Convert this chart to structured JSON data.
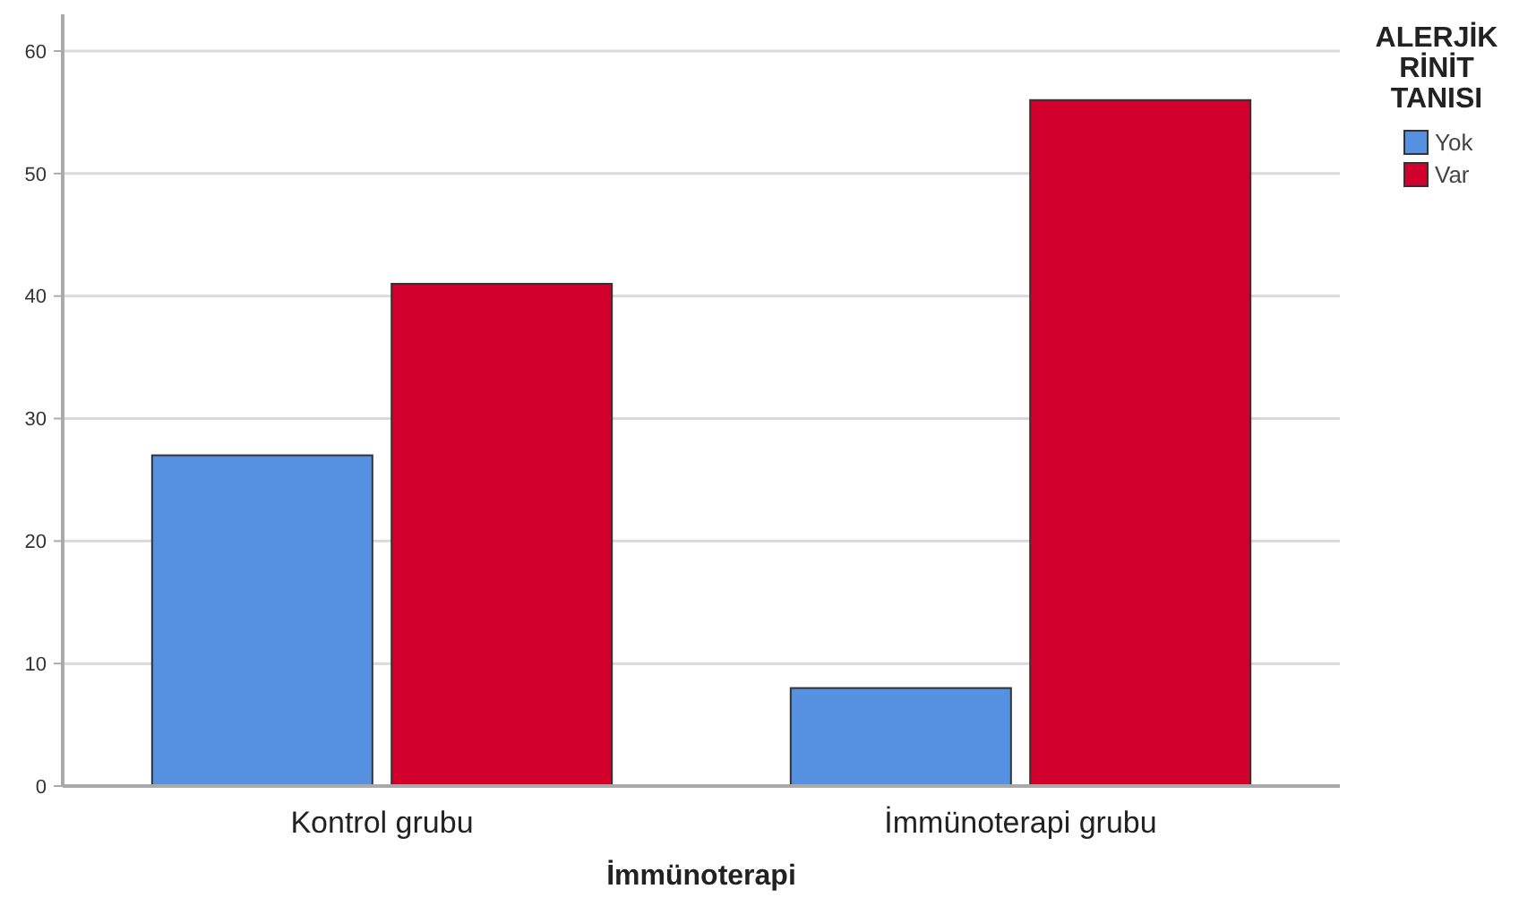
{
  "chart_data": {
    "type": "bar",
    "xlabel": "İmmünoterapi",
    "legend_title": "ALERJİK RİNİT TANISI",
    "categories": [
      "Kontrol grubu",
      "İmmünoterapi grubu"
    ],
    "series": [
      {
        "name": "Yok",
        "color": "#5591e0",
        "values": [
          27,
          8
        ]
      },
      {
        "name": "Var",
        "color": "#d2002c",
        "values": [
          41,
          56
        ]
      }
    ],
    "ylim": [
      0,
      63
    ],
    "yticks": [
      0,
      10,
      20,
      30,
      40,
      50,
      60
    ],
    "grid": "y",
    "legend": "top right"
  }
}
